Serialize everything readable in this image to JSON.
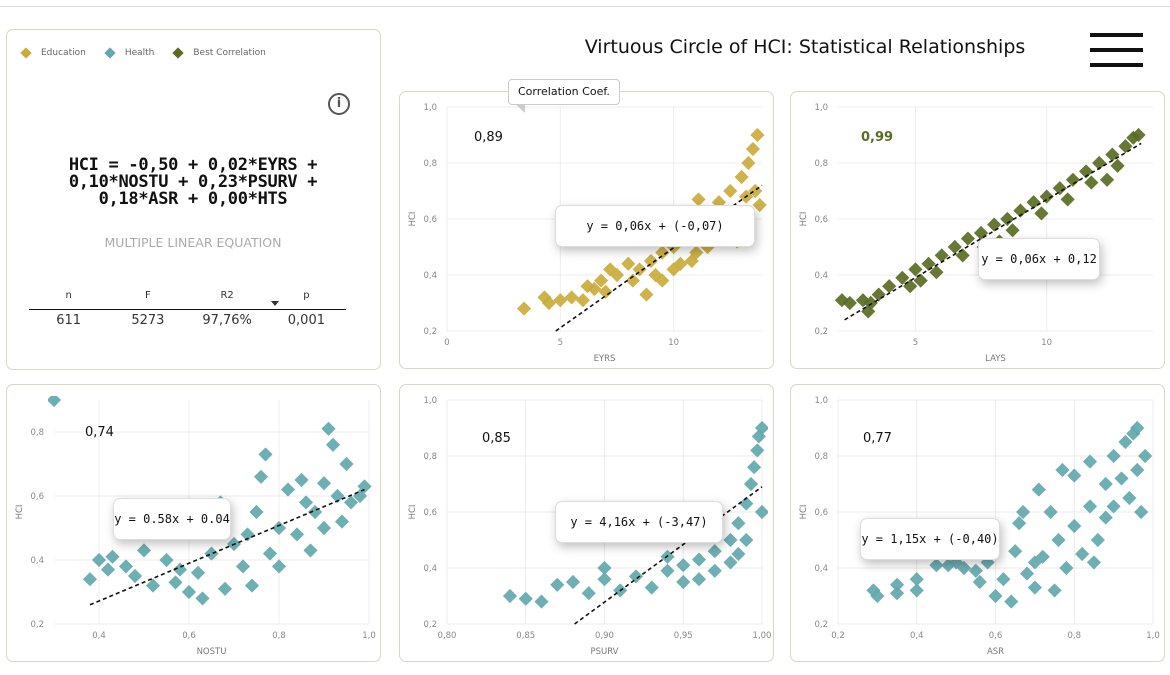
{
  "header": {
    "title": "Virtuous Circle of HCI: Statistical Relationships",
    "menu_icon": "hamburger-icon"
  },
  "legend": [
    {
      "label": "Education",
      "color": "#c9ac3a"
    },
    {
      "label": "Health",
      "color": "#62a8ad"
    },
    {
      "label": "Best Correlation",
      "color": "#5a6b23"
    }
  ],
  "summary": {
    "equation_lines": [
      "HCI = -0,50 + 0,02*EYRS +",
      "0,10*NOSTU + 0,23*PSURV +",
      "0,18*ASR + 0,00*HTS"
    ],
    "subtitle": "MULTIPLE LINEAR EQUATION",
    "info_icon": "info-icon",
    "headers": [
      "n",
      "F",
      "R2",
      "p"
    ],
    "values": [
      "611",
      "5273",
      "97,76%",
      "0,001"
    ]
  },
  "callout": "Correlation Coef.",
  "chart_data": [
    {
      "type": "scatter",
      "xlabel": "EYRS",
      "ylabel": "HCI",
      "xlim": [
        0,
        13.9
      ],
      "ylim": [
        0.2,
        1.0
      ],
      "xticks": [
        "0",
        "5",
        "10"
      ],
      "xtick_values": [
        0,
        5,
        10
      ],
      "yticks": [
        "0,2",
        "0,4",
        "0,6",
        "0,8",
        "1,0"
      ],
      "ytick_values": [
        0.2,
        0.4,
        0.6,
        0.8,
        1.0
      ],
      "grid": true,
      "color": "#c9ac3a",
      "coefficient": "0,89",
      "equation": "y = 0,06x + (-0,07)",
      "trend_line": [
        [
          4.8,
          0.2
        ],
        [
          13.9,
          0.72
        ]
      ],
      "points": [
        [
          3.4,
          0.28
        ],
        [
          4.3,
          0.32
        ],
        [
          4.5,
          0.3
        ],
        [
          5,
          0.31
        ],
        [
          5.5,
          0.32
        ],
        [
          6,
          0.31
        ],
        [
          6.2,
          0.36
        ],
        [
          6.8,
          0.38
        ],
        [
          7.2,
          0.42
        ],
        [
          7.5,
          0.4
        ],
        [
          8,
          0.44
        ],
        [
          8.5,
          0.42
        ],
        [
          8.8,
          0.33
        ],
        [
          9,
          0.45
        ],
        [
          9.5,
          0.48
        ],
        [
          10,
          0.5
        ],
        [
          10,
          0.42
        ],
        [
          10.5,
          0.55
        ],
        [
          10.8,
          0.45
        ],
        [
          11,
          0.58
        ],
        [
          11,
          0.48
        ],
        [
          11.5,
          0.62
        ],
        [
          11.5,
          0.5
        ],
        [
          12,
          0.66
        ],
        [
          12,
          0.55
        ],
        [
          12.5,
          0.7
        ],
        [
          12.5,
          0.58
        ],
        [
          13,
          0.75
        ],
        [
          13,
          0.6
        ],
        [
          13.3,
          0.8
        ],
        [
          13.5,
          0.85
        ],
        [
          13.7,
          0.9
        ],
        [
          13.6,
          0.7
        ],
        [
          13.8,
          0.65
        ],
        [
          11.1,
          0.67
        ],
        [
          9.5,
          0.38
        ],
        [
          7,
          0.34
        ],
        [
          12.8,
          0.52
        ],
        [
          6.5,
          0.35
        ],
        [
          8.2,
          0.38
        ],
        [
          9.2,
          0.4
        ],
        [
          10.3,
          0.44
        ],
        [
          12.2,
          0.62
        ],
        [
          13.2,
          0.68
        ]
      ]
    },
    {
      "type": "scatter",
      "xlabel": "LAYS",
      "ylabel": "HCI",
      "xlim": [
        2.05,
        14.05
      ],
      "ylim": [
        0.2,
        1.0
      ],
      "xticks": [
        "5",
        "10"
      ],
      "xtick_values": [
        5,
        10
      ],
      "yticks": [
        "0,2",
        "0,4",
        "0,6",
        "0,8",
        "1,0"
      ],
      "ytick_values": [
        0.2,
        0.4,
        0.6,
        0.8,
        1.0
      ],
      "grid": true,
      "color": "#5a6b23",
      "coefficient": "0,99",
      "best": true,
      "equation": "y = 0,06x + 0,12",
      "trend_line": [
        [
          2.3,
          0.24
        ],
        [
          13.6,
          0.87
        ]
      ],
      "points": [
        [
          2.2,
          0.31
        ],
        [
          2.5,
          0.3
        ],
        [
          3,
          0.31
        ],
        [
          3.3,
          0.3
        ],
        [
          3.6,
          0.33
        ],
        [
          3.2,
          0.27
        ],
        [
          4,
          0.36
        ],
        [
          4.5,
          0.39
        ],
        [
          4.8,
          0.36
        ],
        [
          5,
          0.42
        ],
        [
          5.5,
          0.44
        ],
        [
          5.8,
          0.41
        ],
        [
          6,
          0.47
        ],
        [
          6.5,
          0.5
        ],
        [
          6.8,
          0.47
        ],
        [
          7,
          0.53
        ],
        [
          7.5,
          0.55
        ],
        [
          7.6,
          0.5
        ],
        [
          8,
          0.58
        ],
        [
          8.5,
          0.6
        ],
        [
          8.7,
          0.56
        ],
        [
          9,
          0.63
        ],
        [
          9.5,
          0.66
        ],
        [
          9.8,
          0.62
        ],
        [
          10,
          0.68
        ],
        [
          10.5,
          0.71
        ],
        [
          10.8,
          0.67
        ],
        [
          11,
          0.74
        ],
        [
          11.5,
          0.77
        ],
        [
          11.7,
          0.73
        ],
        [
          12,
          0.8
        ],
        [
          12.5,
          0.83
        ],
        [
          12.7,
          0.79
        ],
        [
          13,
          0.86
        ],
        [
          13.3,
          0.89
        ],
        [
          13.5,
          0.9
        ],
        [
          12.3,
          0.74
        ],
        [
          8.2,
          0.52
        ],
        [
          5.2,
          0.38
        ]
      ]
    },
    {
      "type": "scatter",
      "xlabel": "NOSTU",
      "ylabel": "HCI",
      "xlim": [
        0.3,
        1.0
      ],
      "ylim": [
        0.2,
        0.9
      ],
      "xticks": [
        "0,4",
        "0,6",
        "0,8",
        "1,0"
      ],
      "xtick_values": [
        0.4,
        0.6,
        0.8,
        1.0
      ],
      "yticks": [
        "0,2",
        "0,4",
        "0,6",
        "0,8"
      ],
      "ytick_values": [
        0.2,
        0.4,
        0.6,
        0.8
      ],
      "grid": true,
      "color": "#62a8ad",
      "coefficient": "0,74",
      "equation": "y = 0.58x + 0.04",
      "trend_line": [
        [
          0.38,
          0.26
        ],
        [
          0.99,
          0.62
        ]
      ],
      "points": [
        [
          0.3,
          0.9
        ],
        [
          0.38,
          0.34
        ],
        [
          0.4,
          0.4
        ],
        [
          0.42,
          0.37
        ],
        [
          0.43,
          0.41
        ],
        [
          0.46,
          0.38
        ],
        [
          0.48,
          0.35
        ],
        [
          0.5,
          0.43
        ],
        [
          0.52,
          0.32
        ],
        [
          0.55,
          0.4
        ],
        [
          0.57,
          0.33
        ],
        [
          0.6,
          0.3
        ],
        [
          0.62,
          0.36
        ],
        [
          0.63,
          0.28
        ],
        [
          0.65,
          0.42
        ],
        [
          0.67,
          0.58
        ],
        [
          0.68,
          0.31
        ],
        [
          0.7,
          0.45
        ],
        [
          0.72,
          0.38
        ],
        [
          0.74,
          0.32
        ],
        [
          0.75,
          0.55
        ],
        [
          0.76,
          0.66
        ],
        [
          0.77,
          0.73
        ],
        [
          0.78,
          0.42
        ],
        [
          0.8,
          0.5
        ],
        [
          0.8,
          0.38
        ],
        [
          0.82,
          0.62
        ],
        [
          0.84,
          0.48
        ],
        [
          0.86,
          0.58
        ],
        [
          0.87,
          0.43
        ],
        [
          0.88,
          0.55
        ],
        [
          0.9,
          0.64
        ],
        [
          0.9,
          0.5
        ],
        [
          0.91,
          0.81
        ],
        [
          0.92,
          0.76
        ],
        [
          0.93,
          0.6
        ],
        [
          0.94,
          0.52
        ],
        [
          0.95,
          0.7
        ],
        [
          0.96,
          0.58
        ],
        [
          0.98,
          0.6
        ],
        [
          0.99,
          0.63
        ],
        [
          0.85,
          0.65
        ],
        [
          0.73,
          0.48
        ],
        [
          0.58,
          0.37
        ]
      ]
    },
    {
      "type": "scatter",
      "xlabel": "PSURV",
      "ylabel": "HCI",
      "xlim": [
        0.8,
        1.0
      ],
      "ylim": [
        0.2,
        1.0
      ],
      "xticks": [
        "0,80",
        "0,85",
        "0,90",
        "0,95",
        "1,00"
      ],
      "xtick_values": [
        0.8,
        0.85,
        0.9,
        0.95,
        1.0
      ],
      "yticks": [
        "0,2",
        "0,4",
        "0,6",
        "0,8",
        "1,0"
      ],
      "ytick_values": [
        0.2,
        0.4,
        0.6,
        0.8,
        1.0
      ],
      "grid": true,
      "color": "#62a8ad",
      "coefficient": "0,85",
      "equation": "y = 4,16x + (-3,47)",
      "trend_line": [
        [
          0.881,
          0.2
        ],
        [
          1.0,
          0.69
        ]
      ],
      "points": [
        [
          0.84,
          0.3
        ],
        [
          0.85,
          0.29
        ],
        [
          0.86,
          0.28
        ],
        [
          0.87,
          0.34
        ],
        [
          0.88,
          0.35
        ],
        [
          0.89,
          0.31
        ],
        [
          0.9,
          0.36
        ],
        [
          0.91,
          0.32
        ],
        [
          0.92,
          0.37
        ],
        [
          0.93,
          0.33
        ],
        [
          0.94,
          0.39
        ],
        [
          0.95,
          0.35
        ],
        [
          0.95,
          0.41
        ],
        [
          0.96,
          0.43
        ],
        [
          0.96,
          0.36
        ],
        [
          0.97,
          0.46
        ],
        [
          0.97,
          0.39
        ],
        [
          0.98,
          0.5
        ],
        [
          0.98,
          0.42
        ],
        [
          0.985,
          0.56
        ],
        [
          0.985,
          0.45
        ],
        [
          0.99,
          0.63
        ],
        [
          0.99,
          0.5
        ],
        [
          0.993,
          0.7
        ],
        [
          0.995,
          0.76
        ],
        [
          0.997,
          0.82
        ],
        [
          0.998,
          0.87
        ],
        [
          1.0,
          0.9
        ],
        [
          1.0,
          0.6
        ],
        [
          0.97,
          0.52
        ],
        [
          0.94,
          0.44
        ],
        [
          0.9,
          0.4
        ]
      ]
    },
    {
      "type": "scatter",
      "xlabel": "ASR",
      "ylabel": "HCI",
      "xlim": [
        0.2,
        1.0
      ],
      "ylim": [
        0.2,
        1.0
      ],
      "xticks": [
        "0,2",
        "0,4",
        "0,6",
        "0,8",
        "1,0"
      ],
      "xtick_values": [
        0.2,
        0.4,
        0.6,
        0.8,
        1.0
      ],
      "yticks": [
        "0,2",
        "0,4",
        "0,6",
        "0,8",
        "1,0"
      ],
      "ytick_values": [
        0.2,
        0.4,
        0.6,
        0.8,
        1.0
      ],
      "grid": true,
      "color": "#62a8ad",
      "coefficient": "0,77",
      "equation": "y = 1,15x + (-0,40)",
      "trend_line": null,
      "points": [
        [
          0.29,
          0.32
        ],
        [
          0.3,
          0.3
        ],
        [
          0.35,
          0.34
        ],
        [
          0.35,
          0.31
        ],
        [
          0.4,
          0.36
        ],
        [
          0.4,
          0.32
        ],
        [
          0.45,
          0.41
        ],
        [
          0.48,
          0.41
        ],
        [
          0.5,
          0.42
        ],
        [
          0.52,
          0.4
        ],
        [
          0.55,
          0.39
        ],
        [
          0.56,
          0.35
        ],
        [
          0.58,
          0.42
        ],
        [
          0.6,
          0.3
        ],
        [
          0.62,
          0.36
        ],
        [
          0.64,
          0.28
        ],
        [
          0.65,
          0.46
        ],
        [
          0.66,
          0.56
        ],
        [
          0.67,
          0.6
        ],
        [
          0.68,
          0.38
        ],
        [
          0.7,
          0.33
        ],
        [
          0.71,
          0.68
        ],
        [
          0.72,
          0.44
        ],
        [
          0.74,
          0.6
        ],
        [
          0.75,
          0.32
        ],
        [
          0.76,
          0.5
        ],
        [
          0.77,
          0.75
        ],
        [
          0.78,
          0.4
        ],
        [
          0.8,
          0.73
        ],
        [
          0.8,
          0.55
        ],
        [
          0.82,
          0.45
        ],
        [
          0.84,
          0.78
        ],
        [
          0.84,
          0.62
        ],
        [
          0.86,
          0.5
        ],
        [
          0.88,
          0.7
        ],
        [
          0.88,
          0.58
        ],
        [
          0.9,
          0.8
        ],
        [
          0.9,
          0.62
        ],
        [
          0.92,
          0.72
        ],
        [
          0.93,
          0.85
        ],
        [
          0.94,
          0.65
        ],
        [
          0.95,
          0.88
        ],
        [
          0.96,
          0.9
        ],
        [
          0.96,
          0.75
        ],
        [
          0.97,
          0.6
        ],
        [
          0.98,
          0.8
        ],
        [
          0.85,
          0.42
        ],
        [
          0.7,
          0.42
        ]
      ]
    }
  ]
}
